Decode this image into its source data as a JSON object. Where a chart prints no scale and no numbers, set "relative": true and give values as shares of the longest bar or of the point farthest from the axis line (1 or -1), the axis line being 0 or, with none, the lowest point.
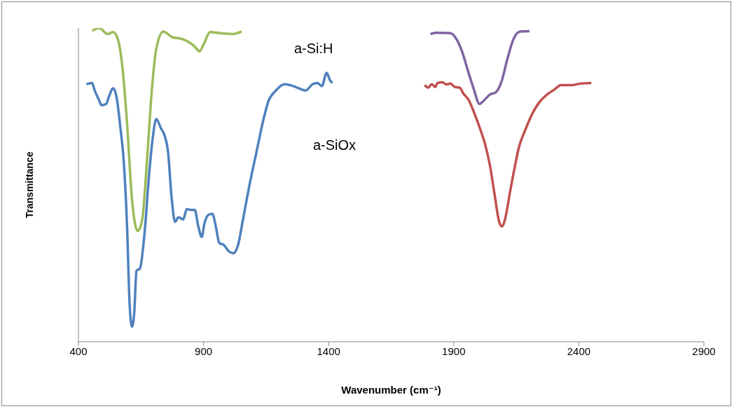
{
  "chart_data": {
    "type": "line",
    "relative": true,
    "xlabel": "Wavenumber (cm⁻¹)",
    "ylabel": "Transmittance",
    "xlim": [
      400,
      2900
    ],
    "xticks": [
      400,
      900,
      1400,
      1900,
      2400,
      2900
    ],
    "grid": false,
    "legend": false,
    "marker": "none",
    "line_style": "solid",
    "annotations": [
      "a-Si:H",
      "a-SiOx"
    ],
    "series": [
      {
        "color": "#9bbb59",
        "x": [
          455,
          483,
          516,
          539,
          558,
          576,
          595,
          613,
          637,
          655,
          674,
          693,
          711,
          739,
          777,
          805,
          842,
          861,
          884,
          903,
          926,
          963,
          1019,
          1052
        ],
        "values": [
          0.991,
          1.0,
          0.981,
          0.987,
          0.963,
          0.873,
          0.688,
          0.464,
          0.353,
          0.39,
          0.576,
          0.799,
          0.933,
          0.989,
          0.97,
          0.967,
          0.955,
          0.944,
          0.926,
          0.952,
          0.987,
          0.984,
          0.981,
          0.989
        ]
      },
      {
        "color": "#4f81bd",
        "x": [
          432,
          455,
          464,
          483,
          492,
          511,
          520,
          539,
          553,
          567,
          581,
          595,
          604,
          614,
          623,
          632,
          646,
          665,
          683,
          697,
          711,
          730,
          744,
          758,
          772,
          786,
          800,
          819,
          833,
          851,
          865,
          879,
          893,
          903,
          921,
          935,
          949,
          963,
          982,
          1000,
          1019,
          1038,
          1056,
          1084,
          1112,
          1140,
          1159,
          1187,
          1224,
          1262,
          1308,
          1336,
          1355,
          1373,
          1392,
          1406,
          1415
        ],
        "values": [
          0.821,
          0.825,
          0.803,
          0.769,
          0.754,
          0.758,
          0.777,
          0.808,
          0.777,
          0.687,
          0.576,
          0.353,
          0.13,
          0.048,
          0.092,
          0.226,
          0.234,
          0.353,
          0.539,
          0.65,
          0.71,
          0.68,
          0.658,
          0.606,
          0.464,
          0.382,
          0.397,
          0.39,
          0.423,
          0.42,
          0.42,
          0.368,
          0.334,
          0.375,
          0.405,
          0.408,
          0.368,
          0.315,
          0.308,
          0.289,
          0.282,
          0.308,
          0.382,
          0.501,
          0.606,
          0.71,
          0.766,
          0.799,
          0.821,
          0.814,
          0.801,
          0.821,
          0.825,
          0.815,
          0.857,
          0.833,
          0.825
        ]
      },
      {
        "color": "#8064a2",
        "x": [
          1807,
          1830,
          1886,
          1910,
          1933,
          1956,
          1980,
          2003,
          2021,
          2045,
          2068,
          2091,
          2115,
          2138,
          2166,
          2203
        ],
        "values": [
          0.981,
          0.985,
          0.984,
          0.966,
          0.926,
          0.866,
          0.806,
          0.758,
          0.769,
          0.788,
          0.795,
          0.829,
          0.903,
          0.963,
          0.989,
          0.99
        ]
      },
      {
        "color": "#c0504d",
        "x": [
          1784,
          1798,
          1812,
          1826,
          1835,
          1854,
          1872,
          1886,
          1905,
          1924,
          1938,
          1961,
          1984,
          2008,
          2026,
          2045,
          2063,
          2082,
          2093,
          2105,
          2124,
          2143,
          2161,
          2185,
          2213,
          2241,
          2273,
          2301,
          2329,
          2371,
          2408,
          2450
        ],
        "values": [
          0.818,
          0.81,
          0.821,
          0.812,
          0.825,
          0.827,
          0.82,
          0.823,
          0.812,
          0.81,
          0.792,
          0.769,
          0.725,
          0.673,
          0.628,
          0.561,
          0.472,
          0.382,
          0.368,
          0.39,
          0.472,
          0.553,
          0.621,
          0.673,
          0.725,
          0.762,
          0.788,
          0.803,
          0.818,
          0.818,
          0.823,
          0.825
        ]
      }
    ]
  }
}
